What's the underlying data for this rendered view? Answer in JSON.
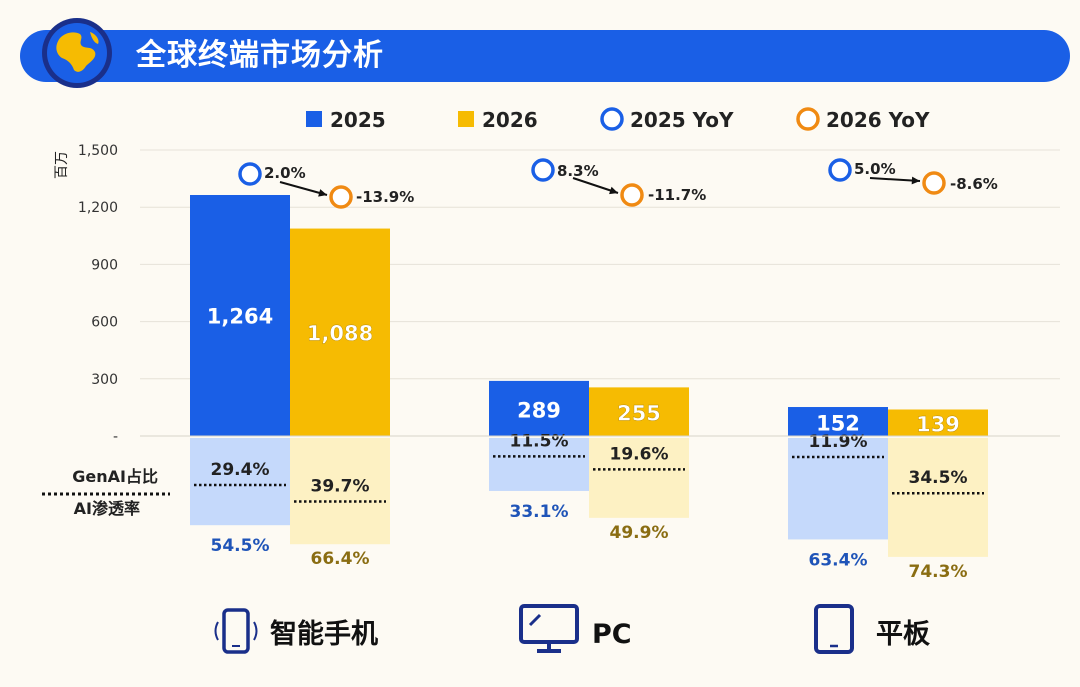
{
  "header": {
    "title": "全球终端市场分析",
    "icon": "globe-icon"
  },
  "colors": {
    "y2025": "#1a5fe6",
    "y2026": "#f6bb02",
    "pen2025": "#c5d9fb",
    "pen2026": "#fdf1c3",
    "pen2025_text": "#1f54b8",
    "pen2026_text": "#8a6d12",
    "yoy2025": "#1a5fe6",
    "yoy2026": "#f08a13"
  },
  "side_labels": {
    "genai": "GenAI占比",
    "ai": "AI渗透率"
  },
  "chart_data": {
    "type": "bar",
    "ylabel": "百万",
    "ylim": [
      0,
      1500
    ],
    "yticks": [
      {
        "value": 0,
        "label": "-"
      },
      {
        "value": 300,
        "label": "300"
      },
      {
        "value": 600,
        "label": "600"
      },
      {
        "value": 900,
        "label": "900"
      },
      {
        "value": 1200,
        "label": "1,200"
      },
      {
        "value": 1500,
        "label": "1,500"
      }
    ],
    "legend": [
      "2025",
      "2026",
      "2025 YoY",
      "2026 YoY"
    ],
    "categories": [
      "智能手机",
      "PC",
      "平板"
    ],
    "category_icons": [
      "smartphone-icon",
      "monitor-icon",
      "tablet-icon"
    ],
    "series": [
      {
        "name": "2025",
        "values": [
          1264,
          289,
          152
        ],
        "labels": [
          "1,264",
          "289",
          "152"
        ]
      },
      {
        "name": "2026",
        "values": [
          1088,
          255,
          139
        ],
        "labels": [
          "1,088",
          "255",
          "139"
        ]
      }
    ],
    "yoy": {
      "2025": [
        "2.0%",
        "8.3%",
        "5.0%"
      ],
      "2026": [
        "-13.9%",
        "-11.7%",
        "-8.6%"
      ]
    },
    "ai_penetration": {
      "2025": [
        54.5,
        33.1,
        63.4
      ],
      "2026": [
        66.4,
        49.9,
        74.3
      ],
      "labels_2025": [
        "54.5%",
        "33.1%",
        "63.4%"
      ],
      "labels_2026": [
        "66.4%",
        "49.9%",
        "74.3%"
      ]
    },
    "genai_share": {
      "2025": [
        29.4,
        11.5,
        11.9
      ],
      "2026": [
        39.7,
        19.6,
        34.5
      ],
      "labels_2025": [
        "29.4%",
        "11.5%",
        "11.9%"
      ],
      "labels_2026": [
        "39.7%",
        "19.6%",
        "34.5%"
      ]
    }
  }
}
